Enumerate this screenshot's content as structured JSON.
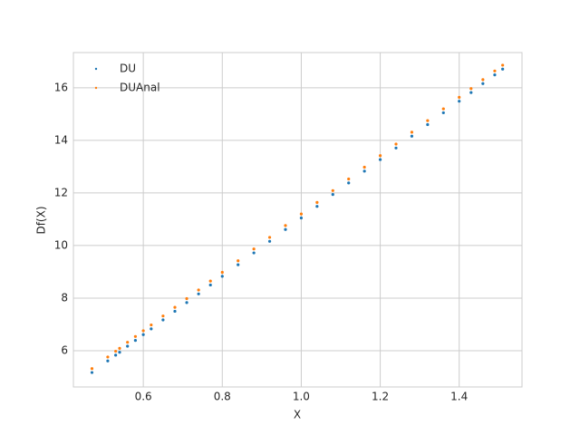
{
  "chart_data": {
    "type": "scatter",
    "xlabel": "X",
    "ylabel": "Df(X)",
    "x": [
      0.47,
      0.51,
      0.53,
      0.54,
      0.56,
      0.58,
      0.6,
      0.62,
      0.65,
      0.68,
      0.71,
      0.74,
      0.77,
      0.8,
      0.84,
      0.88,
      0.92,
      0.96,
      1.0,
      1.04,
      1.08,
      1.12,
      1.16,
      1.2,
      1.24,
      1.28,
      1.32,
      1.36,
      1.4,
      1.43,
      1.46,
      1.49,
      1.51
    ],
    "series": [
      {
        "name": "DU",
        "color": "#1f77b4",
        "values": [
          5.17,
          5.61,
          5.83,
          5.94,
          6.17,
          6.39,
          6.61,
          6.83,
          7.17,
          7.5,
          7.83,
          8.16,
          8.5,
          8.83,
          9.27,
          9.72,
          10.16,
          10.61,
          11.05,
          11.49,
          11.94,
          12.38,
          12.83,
          13.27,
          13.71,
          14.16,
          14.6,
          15.05,
          15.49,
          15.82,
          16.16,
          16.49,
          16.71
        ]
      },
      {
        "name": "DUAnal",
        "color": "#ff7f0e",
        "values": [
          5.32,
          5.76,
          5.98,
          6.09,
          6.32,
          6.54,
          6.76,
          6.98,
          7.32,
          7.65,
          7.98,
          8.31,
          8.65,
          8.98,
          9.42,
          9.87,
          10.31,
          10.76,
          11.2,
          11.64,
          12.09,
          12.53,
          12.98,
          13.42,
          13.86,
          14.31,
          14.75,
          15.2,
          15.64,
          15.97,
          16.31,
          16.64,
          16.86
        ]
      }
    ],
    "xlim": [
      0.423,
      1.559
    ],
    "ylim": [
      4.62,
      17.34
    ],
    "xticks": [
      0.6,
      0.8,
      {
        "value": 1,
        "label": "1.0"
      },
      1.2,
      1.4
    ],
    "yticks": [
      6,
      8,
      10,
      12,
      14,
      16
    ],
    "grid": true,
    "legend": "upper left"
  }
}
